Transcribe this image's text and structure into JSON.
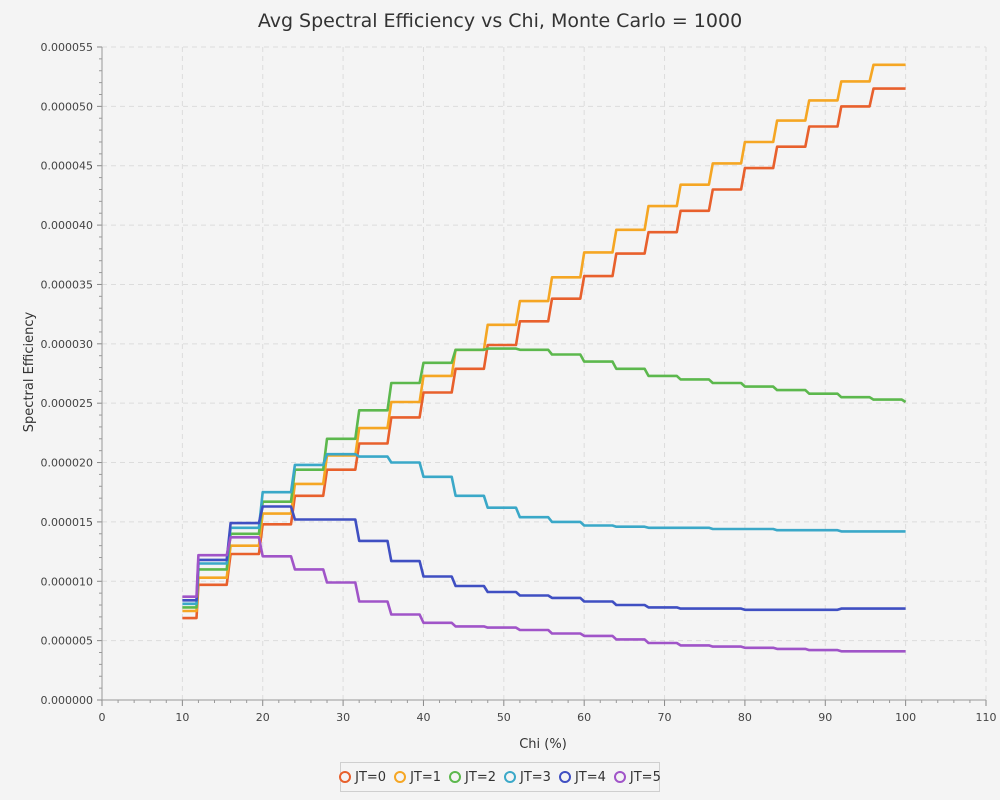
{
  "chart_data": {
    "type": "line",
    "title": "Avg Spectral Efficiency vs Chi, Monte Carlo = 1000",
    "xlabel": "Chi (%)",
    "ylabel": "Spectral Efficiency",
    "xlim": [
      0,
      110
    ],
    "ylim": [
      0,
      5.5e-05
    ],
    "x_ticks": [
      "0",
      "10",
      "20",
      "30",
      "40",
      "50",
      "60",
      "70",
      "80",
      "90",
      "100",
      "110"
    ],
    "y_ticks": [
      "0.000000",
      "0.000005",
      "0.000010",
      "0.000015",
      "0.000020",
      "0.000025",
      "0.000030",
      "0.000035",
      "0.000040",
      "0.000045",
      "0.000050",
      "0.000055"
    ],
    "grid": true,
    "legend_position": "bottom",
    "x": [
      10,
      12,
      16,
      20,
      24,
      28,
      32,
      36,
      40,
      44,
      48,
      52,
      56,
      60,
      64,
      68,
      72,
      76,
      80,
      84,
      88,
      92,
      96,
      100
    ],
    "series": [
      {
        "name": "JT=0",
        "color": "#e8602c",
        "values": [
          6.9e-06,
          9.7e-06,
          1.23e-05,
          1.48e-05,
          1.72e-05,
          1.94e-05,
          2.16e-05,
          2.38e-05,
          2.59e-05,
          2.79e-05,
          2.99e-05,
          3.19e-05,
          3.38e-05,
          3.57e-05,
          3.76e-05,
          3.94e-05,
          4.12e-05,
          4.3e-05,
          4.48e-05,
          4.66e-05,
          4.83e-05,
          5e-05,
          5.15e-05,
          5.15e-05
        ]
      },
      {
        "name": "JT=1",
        "color": "#f5a623",
        "values": [
          7.5e-06,
          1.03e-05,
          1.3e-05,
          1.57e-05,
          1.82e-05,
          2.06e-05,
          2.29e-05,
          2.51e-05,
          2.73e-05,
          2.95e-05,
          3.16e-05,
          3.36e-05,
          3.56e-05,
          3.77e-05,
          3.96e-05,
          4.16e-05,
          4.34e-05,
          4.52e-05,
          4.7e-05,
          4.88e-05,
          5.05e-05,
          5.21e-05,
          5.35e-05,
          5.35e-05
        ]
      },
      {
        "name": "JT=2",
        "color": "#5cb84d",
        "values": [
          7.8e-06,
          1.1e-05,
          1.4e-05,
          1.67e-05,
          1.94e-05,
          2.2e-05,
          2.44e-05,
          2.67e-05,
          2.84e-05,
          2.95e-05,
          2.96e-05,
          2.95e-05,
          2.91e-05,
          2.85e-05,
          2.79e-05,
          2.73e-05,
          2.7e-05,
          2.67e-05,
          2.64e-05,
          2.61e-05,
          2.58e-05,
          2.55e-05,
          2.53e-05,
          2.51e-05
        ]
      },
      {
        "name": "JT=3",
        "color": "#3aa8c8",
        "values": [
          8.1e-06,
          1.15e-05,
          1.45e-05,
          1.75e-05,
          1.98e-05,
          2.07e-05,
          2.05e-05,
          2e-05,
          1.88e-05,
          1.72e-05,
          1.62e-05,
          1.54e-05,
          1.5e-05,
          1.47e-05,
          1.46e-05,
          1.45e-05,
          1.45e-05,
          1.44e-05,
          1.44e-05,
          1.43e-05,
          1.43e-05,
          1.42e-05,
          1.42e-05,
          1.42e-05
        ]
      },
      {
        "name": "JT=4",
        "color": "#3f4fc2",
        "values": [
          8.4e-06,
          1.18e-05,
          1.49e-05,
          1.63e-05,
          1.52e-05,
          1.52e-05,
          1.34e-05,
          1.17e-05,
          1.04e-05,
          9.6e-06,
          9.1e-06,
          8.8e-06,
          8.6e-06,
          8.3e-06,
          8e-06,
          7.8e-06,
          7.7e-06,
          7.7e-06,
          7.6e-06,
          7.6e-06,
          7.6e-06,
          7.7e-06,
          7.7e-06,
          7.7e-06
        ]
      },
      {
        "name": "JT=5",
        "color": "#a054c8",
        "values": [
          8.7e-06,
          1.22e-05,
          1.37e-05,
          1.21e-05,
          1.1e-05,
          9.9e-06,
          8.3e-06,
          7.2e-06,
          6.5e-06,
          6.2e-06,
          6.1e-06,
          5.9e-06,
          5.6e-06,
          5.4e-06,
          5.1e-06,
          4.8e-06,
          4.6e-06,
          4.5e-06,
          4.4e-06,
          4.3e-06,
          4.2e-06,
          4.1e-06,
          4.1e-06,
          4.1e-06
        ]
      }
    ]
  }
}
